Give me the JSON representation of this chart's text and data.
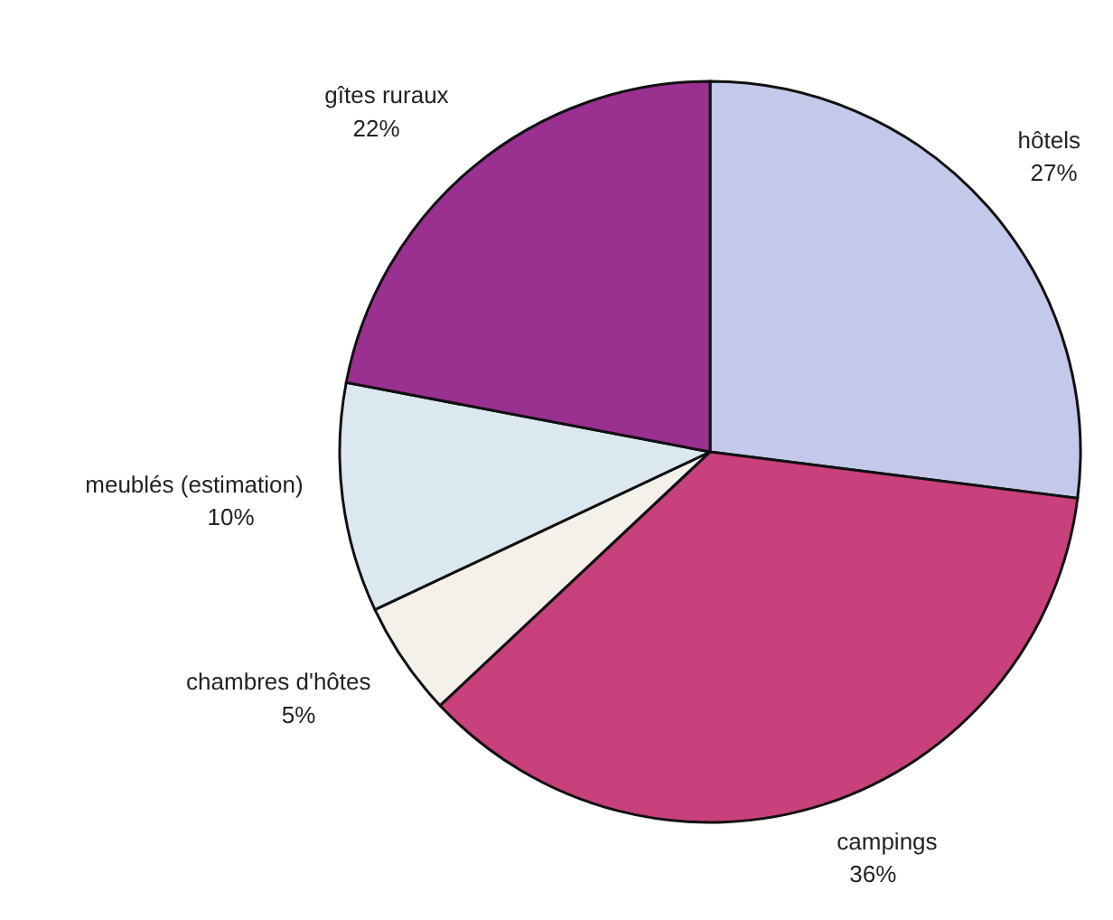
{
  "chart_data": {
    "type": "pie",
    "categories": [
      "hôtels",
      "campings",
      "chambres d'hôtes",
      "meublés (estimation)",
      "gîtes ruraux"
    ],
    "values": [
      27,
      36,
      5,
      10,
      22
    ],
    "colors": [
      "#c4c8ea",
      "#c8407c",
      "#f4f0ea",
      "#dce8f0",
      "#9a3090"
    ],
    "value_labels": [
      "27%",
      "36%",
      "5%",
      "10%",
      "22%"
    ]
  }
}
